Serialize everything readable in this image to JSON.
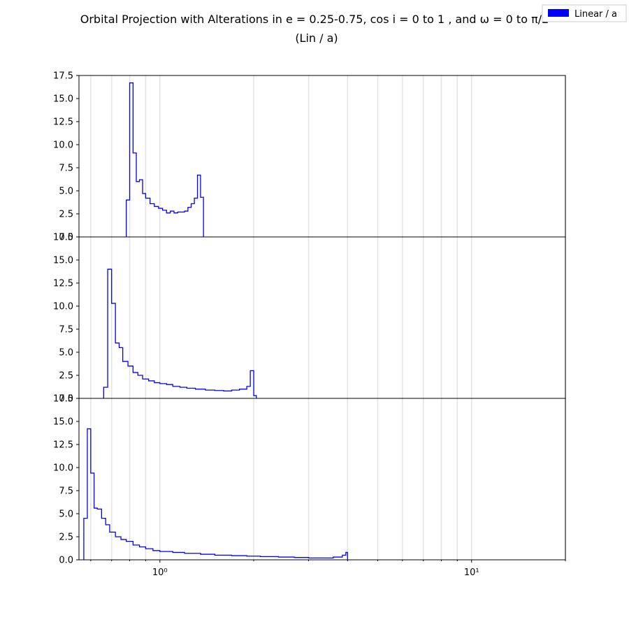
{
  "chart_data": {
    "type": "histogram",
    "title_line1": "Orbital Projection with Alterations in e = 0.25-0.75, cos i = 0 to 1 , and ω = 0 to π/2",
    "title_line2": "(Lin / a)",
    "legend": {
      "label": "Linear / a",
      "placement": "top-right",
      "color": "#0000ff"
    },
    "x_scale": "log",
    "xlim": [
      0.55,
      20
    ],
    "x_major_ticks": [
      1,
      10
    ],
    "x_tick_labels": [
      "10⁰",
      "10¹"
    ],
    "grid": "vertical minor and major lines",
    "line_color": "#0000ff",
    "panels": [
      {
        "name": "panel-1",
        "ylim": [
          0,
          17.5
        ],
        "y_ticks": [
          0.0,
          2.5,
          5.0,
          7.5,
          10.0,
          12.5,
          15.0,
          17.5
        ],
        "y_tick_labels": [
          "0.0",
          "2.5",
          "5.0",
          "7.5",
          "10.0",
          "12.5",
          "15.0",
          "17.5"
        ],
        "bin_edges": [
          0.78,
          0.8,
          0.82,
          0.84,
          0.86,
          0.88,
          0.9,
          0.93,
          0.96,
          0.99,
          1.02,
          1.05,
          1.08,
          1.11,
          1.14,
          1.17,
          1.2,
          1.23,
          1.26,
          1.29,
          1.32,
          1.35,
          1.38
        ],
        "counts": [
          4.0,
          16.7,
          9.1,
          6.0,
          6.2,
          4.7,
          4.2,
          3.6,
          3.3,
          3.1,
          2.9,
          2.6,
          2.8,
          2.6,
          2.7,
          2.7,
          2.8,
          3.2,
          3.6,
          4.2,
          6.7,
          4.3
        ]
      },
      {
        "name": "panel-2",
        "ylim": [
          0,
          17.5
        ],
        "y_ticks": [
          0.0,
          2.5,
          5.0,
          7.5,
          10.0,
          12.5,
          15.0,
          17.5
        ],
        "y_tick_labels": [
          "0.0",
          "2.5",
          "5.0",
          "7.5",
          "10.0",
          "12.5",
          "15.0",
          "17.5"
        ],
        "bin_edges": [
          0.66,
          0.68,
          0.7,
          0.72,
          0.74,
          0.76,
          0.79,
          0.82,
          0.85,
          0.88,
          0.92,
          0.96,
          1.0,
          1.05,
          1.1,
          1.16,
          1.22,
          1.3,
          1.4,
          1.5,
          1.6,
          1.7,
          1.8,
          1.9,
          1.95,
          2.0,
          2.04
        ],
        "counts": [
          1.2,
          14.0,
          10.3,
          6.0,
          5.5,
          4.0,
          3.5,
          2.8,
          2.5,
          2.1,
          1.9,
          1.7,
          1.6,
          1.5,
          1.3,
          1.2,
          1.1,
          1.0,
          0.9,
          0.85,
          0.8,
          0.9,
          1.0,
          1.3,
          3.0,
          0.3
        ]
      },
      {
        "name": "panel-3",
        "ylim": [
          0,
          17.5
        ],
        "y_ticks": [
          0.0,
          2.5,
          5.0,
          7.5,
          10.0,
          12.5,
          15.0,
          17.5
        ],
        "y_tick_labels": [
          "0.0",
          "2.5",
          "5.0",
          "7.5",
          "10.0",
          "12.5",
          "15.0",
          "17.5"
        ],
        "bin_edges": [
          0.57,
          0.585,
          0.6,
          0.615,
          0.63,
          0.65,
          0.67,
          0.69,
          0.72,
          0.75,
          0.78,
          0.82,
          0.86,
          0.9,
          0.95,
          1.0,
          1.1,
          1.2,
          1.35,
          1.5,
          1.7,
          1.9,
          2.1,
          2.4,
          2.7,
          3.0,
          3.3,
          3.6,
          3.85,
          3.95,
          4.0
        ],
        "counts": [
          4.5,
          14.2,
          9.4,
          5.6,
          5.5,
          4.5,
          3.8,
          3.0,
          2.5,
          2.2,
          2.0,
          1.6,
          1.4,
          1.2,
          1.0,
          0.9,
          0.8,
          0.7,
          0.6,
          0.5,
          0.45,
          0.4,
          0.35,
          0.3,
          0.25,
          0.2,
          0.2,
          0.3,
          0.5,
          0.8
        ]
      }
    ]
  }
}
